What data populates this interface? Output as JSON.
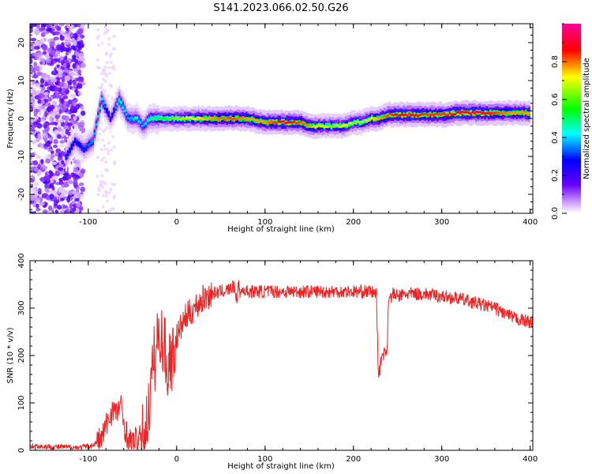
{
  "title": "S141.2023.066.02.50.G26",
  "colors": {
    "snr_line": "#ee2222",
    "axis": "#000000",
    "background": "#ffffff"
  },
  "chart_data": [
    {
      "type": "heatmap",
      "xlabel": "Height of straight line (km)",
      "ylabel": "Frequency (Hz)",
      "xlim": [
        -166,
        403
      ],
      "ylim": [
        -25,
        25
      ],
      "xticks": [
        -100,
        0,
        100,
        200,
        300,
        400
      ],
      "yticks": [
        -20,
        -10,
        0,
        10,
        20
      ],
      "colorbar": {
        "label": "Normalized spectral amplitude",
        "range": [
          0,
          1
        ],
        "ticks": [
          "0.0",
          "0.2",
          "0.4",
          "0.6",
          "0.8"
        ],
        "ticks_values": [
          0.0,
          0.2,
          0.4,
          0.6,
          0.8
        ],
        "colormap": [
          "#ffffff",
          "#cc99ff",
          "#6600ff",
          "#0000ff",
          "#00ffff",
          "#00ff00",
          "#ffff00",
          "#ff0000",
          "#ff0099"
        ]
      },
      "ridge": {
        "x": [
          -125,
          -115,
          -105,
          -95,
          -85,
          -75,
          -65,
          -55,
          -45,
          -38,
          -30,
          -20,
          -10,
          0,
          20,
          40,
          60,
          80,
          100,
          120,
          140,
          150,
          160,
          175,
          190,
          200,
          210,
          220,
          230,
          240,
          260,
          280,
          300,
          320,
          340,
          360,
          380,
          400
        ],
        "y": [
          -10,
          -6,
          -8,
          -6,
          5,
          0,
          5,
          0,
          0,
          -2,
          0,
          0,
          0,
          0,
          0,
          0,
          0,
          0,
          -1,
          -1,
          -1,
          -2,
          -2,
          -2,
          -2,
          -1,
          -1,
          0,
          0,
          1,
          1,
          1,
          1,
          1.5,
          1.5,
          1.5,
          1.5,
          1.5
        ],
        "amplitude": [
          0.4,
          0.35,
          0.4,
          0.45,
          0.5,
          0.3,
          0.55,
          0.45,
          0.5,
          0.45,
          0.55,
          0.6,
          0.65,
          0.7,
          0.75,
          0.8,
          0.85,
          0.8,
          0.8,
          0.9,
          0.85,
          0.8,
          0.75,
          0.7,
          0.75,
          0.7,
          0.7,
          0.75,
          0.8,
          0.85,
          0.9,
          0.85,
          0.85,
          0.9,
          0.9,
          0.85,
          0.8,
          0.8
        ]
      }
    },
    {
      "type": "line",
      "xlabel": "Height of straight line (km)",
      "ylabel": "SNR (10 * v/v)",
      "xlim": [
        -166,
        403
      ],
      "ylim": [
        0,
        400
      ],
      "xticks": [
        -100,
        0,
        100,
        200,
        300,
        400
      ],
      "yticks": [
        0,
        100,
        200,
        300,
        400
      ],
      "series": [
        {
          "x": [
            -166,
            -150,
            -130,
            -110,
            -95,
            -85,
            -78,
            -72,
            -68,
            -64,
            -60,
            -56,
            -52,
            -46,
            -40,
            -36,
            -32,
            -28,
            -26,
            -24,
            -22,
            -20,
            -18,
            -16,
            -14,
            -12,
            -10,
            -8,
            -5,
            0,
            5,
            10,
            15,
            20,
            25,
            30,
            40,
            50,
            60,
            65,
            68,
            70,
            72,
            75,
            80,
            100,
            120,
            150,
            180,
            200,
            220,
            226,
            228,
            229,
            230,
            232,
            235,
            238,
            240,
            242,
            245,
            250,
            260,
            280,
            300,
            320,
            340,
            360,
            380,
            390,
            403
          ],
          "y": [
            10,
            8,
            7,
            6,
            10,
            25,
            60,
            90,
            75,
            100,
            60,
            30,
            15,
            20,
            25,
            40,
            80,
            150,
            200,
            180,
            250,
            220,
            260,
            210,
            240,
            180,
            160,
            200,
            190,
            240,
            260,
            280,
            290,
            300,
            310,
            320,
            330,
            335,
            340,
            345,
            320,
            350,
            330,
            340,
            335,
            335,
            335,
            335,
            335,
            335,
            335,
            330,
            180,
            160,
            170,
            200,
            205,
            210,
            330,
            320,
            330,
            325,
            330,
            330,
            325,
            320,
            310,
            300,
            280,
            275,
            270
          ]
        }
      ]
    }
  ]
}
